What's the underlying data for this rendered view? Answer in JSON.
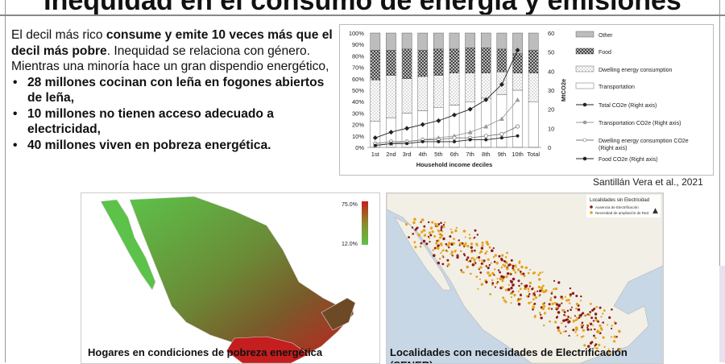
{
  "slide": {
    "title": "Inequidad en el consumo de energía y emisiones",
    "intro_prefix": "El decil más rico ",
    "intro_bold": "consume y emite 10 veces más que el decil más pobre",
    "intro_suffix": ". Inequidad se relaciona con género.",
    "line2": "Mientras una minoría hace un gran dispendio energético,",
    "bullets": [
      "28 millones cocinan con leña en fogones abiertos de leña,",
      "10 millones no tienen acceso adecuado a electricidad,",
      "40 millones viven en pobreza energética."
    ],
    "citation": "Santillán Vera  et al., 2021"
  },
  "map_left": {
    "caption": "Hogares en condiciones de pobreza energética",
    "legend_max": "75.0%",
    "legend_min": "12.0%",
    "colors": {
      "low": "#5cc24a",
      "mid": "#7a6a2e",
      "high": "#c41e1e"
    }
  },
  "map_right": {
    "caption": "Localidades con necesidades de Electrificación (SENER)",
    "legend_title": "Localidades sin Electricidad",
    "legend_items": [
      "Ausencia de Electrificación",
      "Necesidad de ampliación de Red"
    ],
    "colors": {
      "absence": "#8b1a1a",
      "expansion": "#e5a21a",
      "land": "#f2efe6",
      "sea": "#c8d7e6"
    }
  },
  "chart_data": {
    "type": "bar",
    "subtype": "stacked-100-percent-with-lines",
    "categories": [
      "1st",
      "2nd",
      "3rd",
      "4th",
      "5th",
      "6th",
      "7th",
      "8th",
      "9th",
      "10th",
      "Total"
    ],
    "xlabel": "Household income deciles",
    "ylabel_left_ticks": [
      "0%",
      "10%",
      "20%",
      "30%",
      "40%",
      "50%",
      "60%",
      "70%",
      "80%",
      "90%",
      "100%"
    ],
    "ylabel_right": "MtCO2e",
    "ylim_left": [
      0,
      100
    ],
    "ylim_right": [
      0,
      60
    ],
    "y_right_ticks": [
      "0",
      "10",
      "20",
      "30",
      "40",
      "50",
      "60"
    ],
    "series_bars": [
      {
        "name": "Transportation",
        "values": [
          23,
          26,
          30,
          32,
          35,
          37,
          40,
          43,
          46,
          50,
          40
        ]
      },
      {
        "name": "Dwelling energy consumption",
        "values": [
          36,
          37,
          30,
          30,
          28,
          28,
          25,
          22,
          20,
          15,
          25
        ]
      },
      {
        "name": "Food",
        "values": [
          26,
          22,
          26,
          23,
          23,
          21,
          22,
          22,
          20,
          17,
          20
        ]
      },
      {
        "name": "Other",
        "values": [
          15,
          15,
          14,
          15,
          14,
          14,
          13,
          13,
          14,
          18,
          15
        ]
      }
    ],
    "series_lines": [
      {
        "name": "Total CO2e (Right axis)",
        "values": [
          5,
          8,
          10,
          12,
          14,
          17,
          20,
          25,
          33,
          51
        ]
      },
      {
        "name": "Transportation CO2e (Right axis)",
        "values": [
          1,
          2,
          3,
          4,
          5,
          6,
          8,
          11,
          15,
          25
        ]
      },
      {
        "name": "Dwelling energy consumption CO2e (Right axis)",
        "values": [
          2,
          3,
          3,
          4,
          4,
          5,
          5,
          6,
          7,
          11
        ]
      },
      {
        "name": "Food CO2e (Right axis)",
        "values": [
          1,
          2,
          2,
          3,
          3,
          3,
          4,
          4,
          5,
          6
        ]
      }
    ],
    "legend_position": "right",
    "grid": false
  }
}
